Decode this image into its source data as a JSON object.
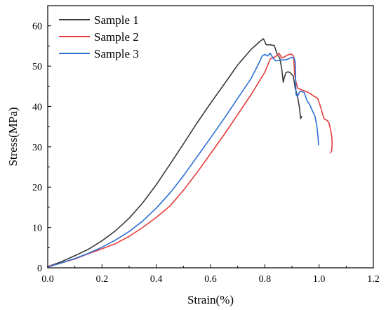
{
  "chart_data": {
    "type": "line",
    "title": "",
    "xlabel": "Strain(%)",
    "ylabel": "Stress(MPa)",
    "xlim": [
      0.0,
      1.2
    ],
    "ylim": [
      0,
      65
    ],
    "x_ticks": [
      0.0,
      0.2,
      0.4,
      0.6,
      0.8,
      1.0,
      1.2
    ],
    "x_tick_labels": [
      "0.0",
      "0.2",
      "0.4",
      "0.6",
      "0.8",
      "1.0",
      "1.2"
    ],
    "y_ticks": [
      0,
      10,
      20,
      30,
      40,
      50,
      60
    ],
    "y_tick_labels": [
      "0",
      "10",
      "20",
      "30",
      "40",
      "50",
      "60"
    ],
    "grid": false,
    "legend_position": "top-left",
    "series": [
      {
        "name": "Sample 1",
        "color": "#3a3a3a",
        "x": [
          0.0,
          0.05,
          0.1,
          0.15,
          0.2,
          0.25,
          0.3,
          0.35,
          0.4,
          0.45,
          0.5,
          0.55,
          0.6,
          0.65,
          0.7,
          0.75,
          0.78,
          0.795,
          0.805,
          0.82,
          0.835,
          0.845,
          0.855,
          0.862,
          0.868,
          0.872,
          0.878,
          0.886,
          0.895,
          0.905,
          0.912,
          0.918,
          0.923,
          0.927,
          0.932,
          0.936
        ],
        "y": [
          0.3,
          1.5,
          3.0,
          4.6,
          6.7,
          9.2,
          12.3,
          16.1,
          20.6,
          25.6,
          30.7,
          35.9,
          40.8,
          45.5,
          50.3,
          54.2,
          56.0,
          56.8,
          55.3,
          55.3,
          55.1,
          53.0,
          52.0,
          49.5,
          46.0,
          47.2,
          48.4,
          48.6,
          48.3,
          47.5,
          44.5,
          43.1,
          41.5,
          40.0,
          37.0,
          37.5
        ]
      },
      {
        "name": "Sample 2",
        "color": "#e63b3b",
        "x": [
          0.0,
          0.05,
          0.1,
          0.15,
          0.2,
          0.25,
          0.3,
          0.35,
          0.4,
          0.45,
          0.5,
          0.55,
          0.6,
          0.65,
          0.7,
          0.75,
          0.8,
          0.82,
          0.84,
          0.853,
          0.862,
          0.872,
          0.885,
          0.898,
          0.906,
          0.91,
          0.915,
          0.922,
          0.93,
          0.94,
          0.96,
          0.98,
          0.995,
          1.005,
          1.018,
          1.03,
          1.036,
          1.043,
          1.047,
          1.048,
          1.046,
          1.042
        ],
        "y": [
          0.3,
          1.2,
          2.2,
          3.5,
          4.7,
          6.0,
          7.8,
          10.0,
          12.5,
          15.3,
          19.2,
          23.6,
          28.3,
          33.0,
          38.0,
          43.0,
          48.5,
          51.8,
          52.4,
          53.2,
          52.0,
          52.3,
          52.8,
          53.0,
          52.5,
          48.0,
          46.0,
          44.5,
          44.3,
          44.0,
          43.5,
          42.6,
          42.0,
          40.0,
          37.0,
          36.5,
          36.0,
          34.0,
          32.5,
          30.5,
          29.0,
          28.5
        ]
      },
      {
        "name": "Sample 3",
        "color": "#2b6fd4",
        "x": [
          0.0,
          0.05,
          0.1,
          0.15,
          0.2,
          0.25,
          0.3,
          0.35,
          0.4,
          0.45,
          0.5,
          0.55,
          0.6,
          0.65,
          0.7,
          0.75,
          0.78,
          0.79,
          0.8,
          0.81,
          0.82,
          0.83,
          0.84,
          0.86,
          0.88,
          0.9,
          0.908,
          0.912,
          0.915,
          0.92,
          0.93,
          0.945,
          0.955,
          0.965,
          0.975,
          0.985,
          0.992,
          0.996,
          0.998
        ],
        "y": [
          0.2,
          1.2,
          2.3,
          3.6,
          5.1,
          6.9,
          9.0,
          11.6,
          14.8,
          18.5,
          22.8,
          27.5,
          32.2,
          37.0,
          42.0,
          47.0,
          51.0,
          52.5,
          52.9,
          52.5,
          53.2,
          52.0,
          51.3,
          51.5,
          51.6,
          52.2,
          52.0,
          51.0,
          43.0,
          42.5,
          43.8,
          43.5,
          41.5,
          40.5,
          39.0,
          37.5,
          35.0,
          32.5,
          30.5
        ]
      }
    ]
  }
}
